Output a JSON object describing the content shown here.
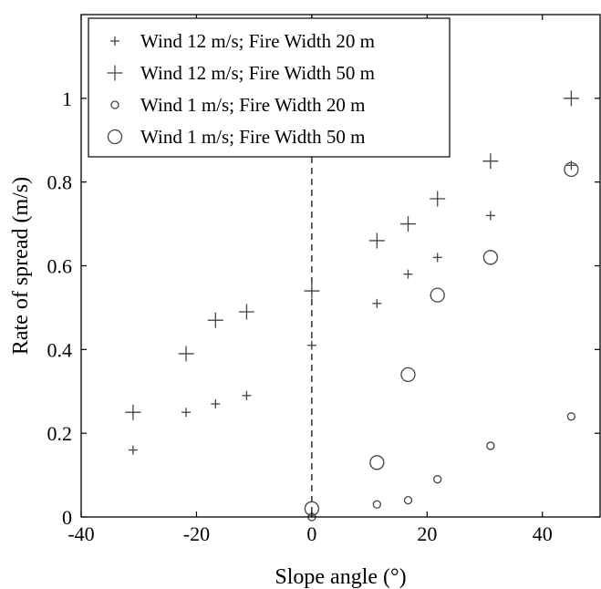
{
  "chart_data": {
    "type": "scatter",
    "title": "",
    "xlabel": "Slope angle (°)",
    "ylabel": "Rate of spread (m/s)",
    "xlim": [
      -40,
      50
    ],
    "ylim": [
      0,
      1.2
    ],
    "xticks": [
      -40,
      -20,
      0,
      20,
      40
    ],
    "xtick_labels": [
      "-40",
      "-20",
      "0",
      "20",
      "40"
    ],
    "yticks": [
      0,
      0.2,
      0.4,
      0.6,
      0.8,
      1
    ],
    "ytick_labels": [
      "0",
      "0.2",
      "0.4",
      "0.6",
      "0.8",
      "1"
    ],
    "grid": false,
    "legend_position": "top-left",
    "reference_line": {
      "x": 0,
      "style": "dashed"
    },
    "series": [
      {
        "name": "Wind 12 m/s; Fire Width 20 m",
        "marker": "plus-small",
        "x": [
          -31,
          -21.8,
          -16.7,
          -11.3,
          0,
          11.3,
          16.7,
          21.8,
          31,
          45
        ],
        "y": [
          0.16,
          0.25,
          0.27,
          0.29,
          0.41,
          0.51,
          0.58,
          0.62,
          0.72,
          0.84
        ]
      },
      {
        "name": "Wind 12 m/s; Fire Width 50 m",
        "marker": "plus-large",
        "x": [
          -31,
          -21.8,
          -16.7,
          -11.3,
          0,
          11.3,
          16.7,
          21.8,
          31,
          45
        ],
        "y": [
          0.25,
          0.39,
          0.47,
          0.49,
          0.54,
          0.66,
          0.7,
          0.76,
          0.85,
          1.0
        ]
      },
      {
        "name": "Wind 1 m/s; Fire Width 20 m",
        "marker": "circle-small",
        "x": [
          0,
          11.3,
          16.7,
          21.8,
          31,
          45
        ],
        "y": [
          0.0,
          0.03,
          0.04,
          0.09,
          0.17,
          0.24
        ]
      },
      {
        "name": "Wind 1 m/s; Fire Width 50 m",
        "marker": "circle-large",
        "x": [
          0,
          11.3,
          16.7,
          21.8,
          31,
          45
        ],
        "y": [
          0.02,
          0.13,
          0.34,
          0.53,
          0.62,
          0.83
        ]
      }
    ],
    "colors": {
      "marker": "#444444",
      "axis": "#000000"
    }
  }
}
